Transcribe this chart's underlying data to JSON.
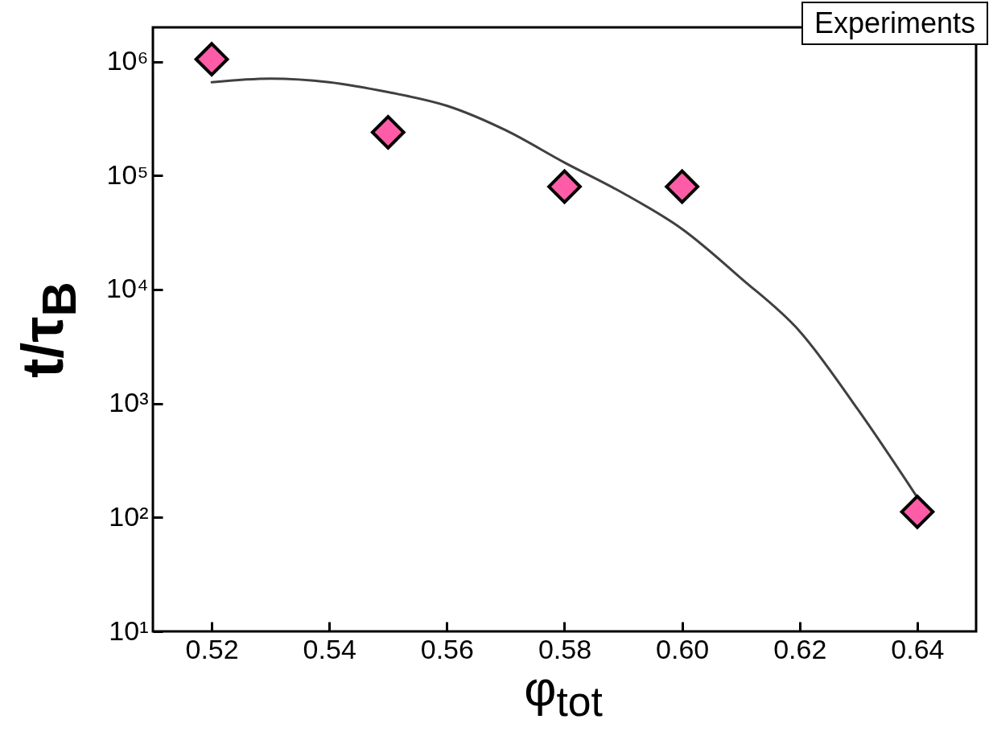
{
  "chart_data": {
    "type": "scatter",
    "xlabel": "φ$_{tot}$",
    "ylabel": "t/τ$_{B}$",
    "annotations": [
      "Experiments"
    ],
    "xlim": [
      0.51,
      0.65
    ],
    "xticks": [
      {
        "value": 0.52,
        "label": "0.52"
      },
      {
        "value": 0.54,
        "label": "0.54"
      },
      {
        "value": 0.56,
        "label": "0.56"
      },
      {
        "value": 0.58,
        "label": "0.58"
      },
      {
        "value": 0.6,
        "label": "0.60"
      },
      {
        "value": 0.62,
        "label": "0.62"
      },
      {
        "value": 0.64,
        "label": "0.64"
      }
    ],
    "ylim": [
      10,
      2000000
    ],
    "yticks": [
      {
        "value": 10,
        "label": "10¹"
      },
      {
        "value": 100,
        "label": "10²"
      },
      {
        "value": 1000,
        "label": "10³"
      },
      {
        "value": 10000,
        "label": "10⁴"
      },
      {
        "value": 100000,
        "label": "10⁵"
      },
      {
        "value": 1000000,
        "label": "10⁶"
      }
    ],
    "log": "y",
    "grid": false,
    "series": [
      {
        "type": "line",
        "color": "#404040",
        "line_style": "solid",
        "x": [
          0.52,
          0.53,
          0.54,
          0.55,
          0.56,
          0.57,
          0.58,
          0.59,
          0.6,
          0.61,
          0.62,
          0.63,
          0.64
        ],
        "values": [
          660000,
          710000,
          660000,
          540000,
          410000,
          250000,
          130000,
          70000,
          34000,
          12600,
          4300,
          870,
          150
        ]
      },
      {
        "type": "scatter",
        "color": "#ff5ca8",
        "marker": "diamond",
        "x": [
          0.52,
          0.55,
          0.58,
          0.6,
          0.64
        ],
        "values": [
          1050000,
          240000,
          80000,
          80000,
          112
        ]
      }
    ]
  }
}
